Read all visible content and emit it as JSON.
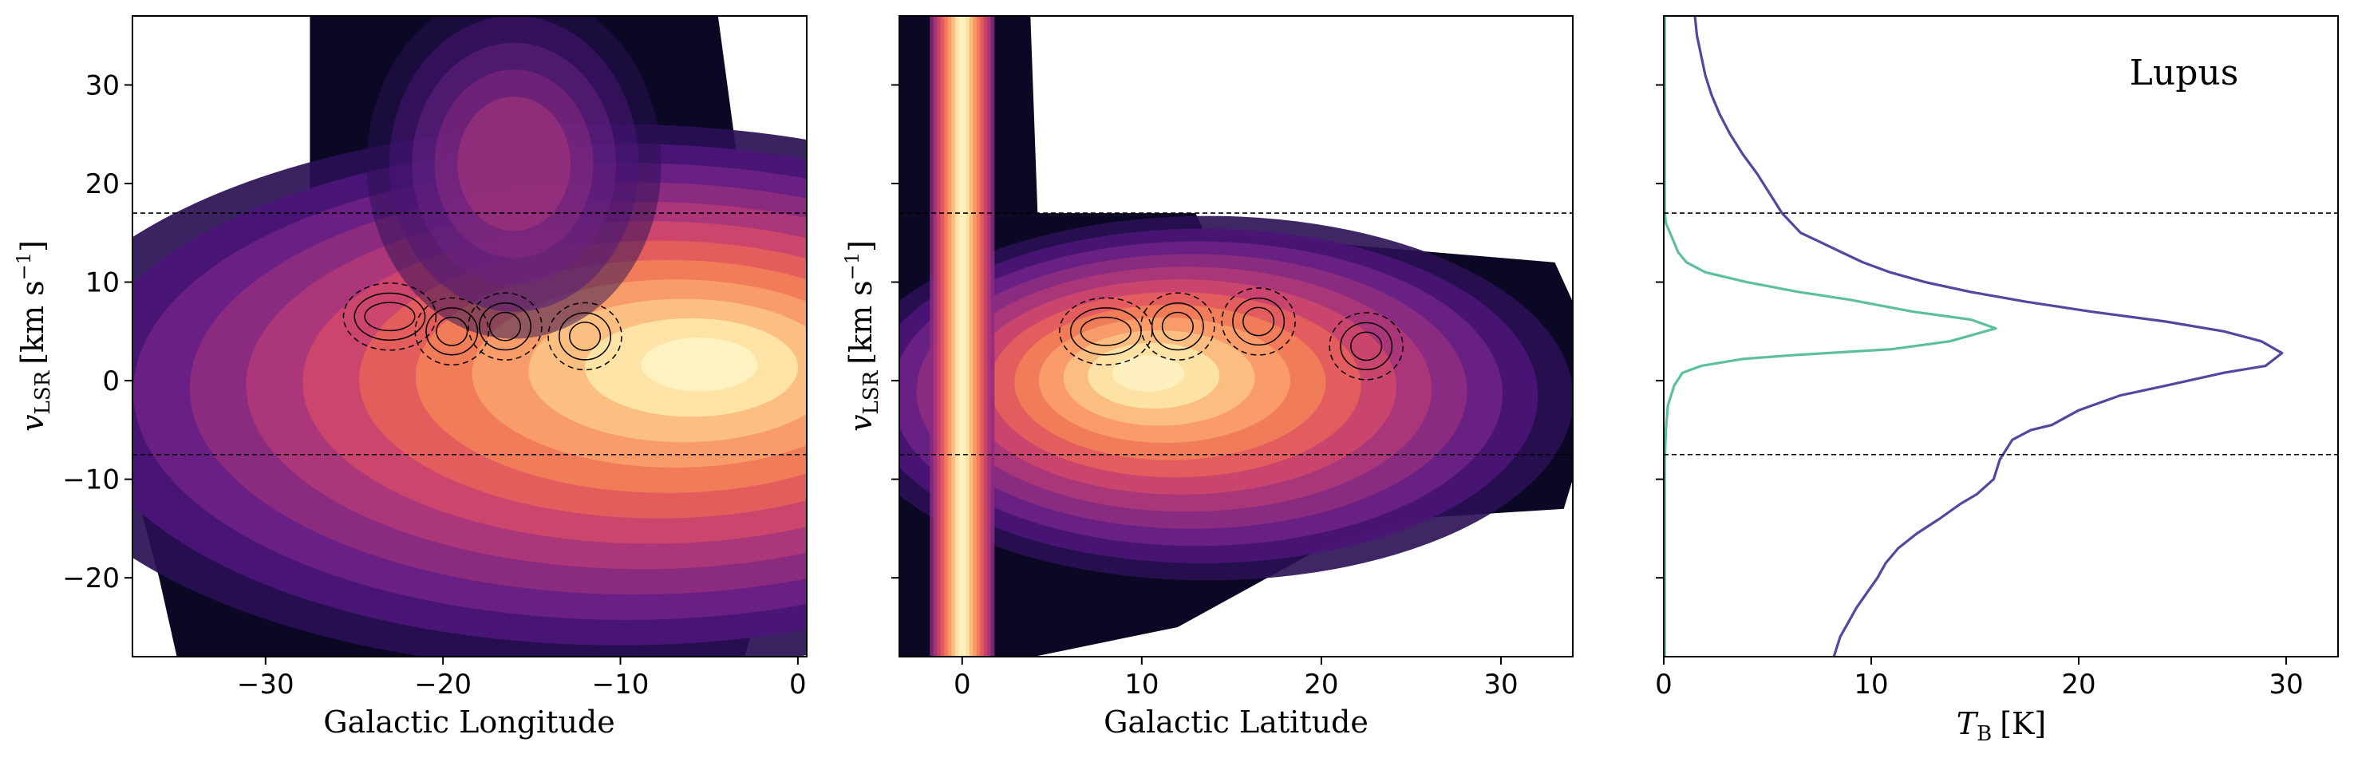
{
  "chart_data": [
    {
      "type": "heatmap",
      "panel": "left",
      "title": "",
      "xlabel": "Galactic Longitude",
      "ylabel_main": "v",
      "ylabel_sub": "LSR",
      "ylabel_unit": "[km s",
      "ylabel_sup": "−1",
      "ylabel_close": "]",
      "xlim": [
        -37.5,
        0.5
      ],
      "ylim": [
        -28,
        37
      ],
      "xticks": [
        -30,
        -20,
        -10,
        0
      ],
      "xtick_labels": [
        "−30",
        "−20",
        "−10",
        "0"
      ],
      "yticks": [
        -20,
        -10,
        0,
        10,
        20,
        30
      ],
      "ytick_labels": [
        "−20",
        "−10",
        "0",
        "10",
        "20",
        "30"
      ],
      "hlines": [
        17,
        -7.5
      ],
      "colormap": "magma",
      "colors": [
        "#0b0825",
        "#2a0f54",
        "#4b1578",
        "#6c2184",
        "#8d2c80",
        "#ae3779",
        "#cd476b",
        "#e55f5c",
        "#f27f5a",
        "#f9a06a",
        "#fbc283",
        "#fde6a8",
        "#fef3c2"
      ],
      "emission_peak": {
        "x": -5,
        "y": 2
      },
      "contour_regions": [
        {
          "x": -23,
          "y": 6.5
        },
        {
          "x": -19.5,
          "y": 5
        },
        {
          "x": -16.5,
          "y": 5.5
        },
        {
          "x": -12,
          "y": 4.5
        }
      ]
    },
    {
      "type": "heatmap",
      "panel": "middle",
      "title": "",
      "xlabel": "Galactic Latitude",
      "ylabel_main": "v",
      "ylabel_sub": "LSR",
      "ylabel_unit": "[km s",
      "ylabel_sup": "−1",
      "ylabel_close": "]",
      "xlim": [
        -3.5,
        34
      ],
      "ylim": [
        -28,
        37
      ],
      "xticks": [
        0,
        10,
        20,
        30
      ],
      "xtick_labels": [
        "0",
        "10",
        "20",
        "30"
      ],
      "yticks": [
        -20,
        -10,
        0,
        10,
        20,
        30
      ],
      "hlines": [
        17,
        -7.5
      ],
      "colormap": "magma",
      "emission_peak": {
        "x": 0,
        "y": 2
      },
      "contour_regions": [
        {
          "x": 8,
          "y": 5
        },
        {
          "x": 12,
          "y": 5.5
        },
        {
          "x": 16.5,
          "y": 6
        },
        {
          "x": 22.5,
          "y": 3.5
        }
      ]
    },
    {
      "type": "line",
      "panel": "right",
      "title": "",
      "annotation": "Lupus",
      "xlabel_main": "T",
      "xlabel_sub": "B",
      "xlabel_unit": "[K]",
      "xlim": [
        0,
        32.5
      ],
      "ylim": [
        -28,
        37
      ],
      "xticks": [
        0,
        10,
        20,
        30
      ],
      "xtick_labels": [
        "0",
        "10",
        "20",
        "30"
      ],
      "yticks": [
        -20,
        -10,
        0,
        10,
        20,
        30
      ],
      "hlines": [
        17,
        -7.5
      ],
      "series": [
        {
          "color": "#5447a0",
          "points": [
            [
              1.5,
              37
            ],
            [
              1.6,
              35
            ],
            [
              1.8,
              33
            ],
            [
              2.0,
              31
            ],
            [
              2.3,
              29
            ],
            [
              2.7,
              27
            ],
            [
              3.2,
              25
            ],
            [
              3.8,
              23
            ],
            [
              4.5,
              21
            ],
            [
              5.1,
              19
            ],
            [
              5.7,
              17
            ],
            [
              6.6,
              15
            ],
            [
              7.6,
              14
            ],
            [
              8.6,
              13
            ],
            [
              9.6,
              12
            ],
            [
              10.9,
              11
            ],
            [
              12.6,
              10
            ],
            [
              14.8,
              9
            ],
            [
              17.5,
              8
            ],
            [
              20.6,
              7
            ],
            [
              24.2,
              6
            ],
            [
              27.0,
              5
            ],
            [
              28.8,
              4
            ],
            [
              29.8,
              2.8
            ],
            [
              29.0,
              1.5
            ],
            [
              27.0,
              0.8
            ],
            [
              24.2,
              -0.5
            ],
            [
              22.0,
              -1.5
            ],
            [
              20.0,
              -3
            ],
            [
              18.7,
              -4.5
            ],
            [
              17.7,
              -5
            ],
            [
              16.8,
              -6
            ],
            [
              16.2,
              -8
            ],
            [
              15.9,
              -10
            ],
            [
              15.1,
              -11.5
            ],
            [
              14.3,
              -12.5
            ],
            [
              13.3,
              -14
            ],
            [
              12.2,
              -15.5
            ],
            [
              11.3,
              -17
            ],
            [
              10.7,
              -18.5
            ],
            [
              10.3,
              -20
            ],
            [
              9.8,
              -21.5
            ],
            [
              9.3,
              -23
            ],
            [
              8.9,
              -24.5
            ],
            [
              8.5,
              -26
            ],
            [
              8.2,
              -28
            ]
          ]
        },
        {
          "color": "#5dbfa0",
          "points": [
            [
              0.05,
              37
            ],
            [
              0.05,
              17
            ],
            [
              0.1,
              16
            ],
            [
              0.3,
              15
            ],
            [
              0.5,
              14
            ],
            [
              0.7,
              13
            ],
            [
              1.1,
              12
            ],
            [
              2.0,
              11
            ],
            [
              4.0,
              10
            ],
            [
              6.5,
              9
            ],
            [
              9.0,
              8.2
            ],
            [
              12.0,
              7
            ],
            [
              14.8,
              6.2
            ],
            [
              16.0,
              5.3
            ],
            [
              13.8,
              4
            ],
            [
              11.0,
              3.2
            ],
            [
              6.3,
              2.6
            ],
            [
              3.8,
              2.2
            ],
            [
              1.8,
              1.5
            ],
            [
              0.9,
              0.8
            ],
            [
              0.5,
              -0.5
            ],
            [
              0.2,
              -2.5
            ],
            [
              0.1,
              -5
            ],
            [
              0.05,
              -8
            ],
            [
              0.05,
              -28
            ]
          ]
        }
      ]
    }
  ]
}
